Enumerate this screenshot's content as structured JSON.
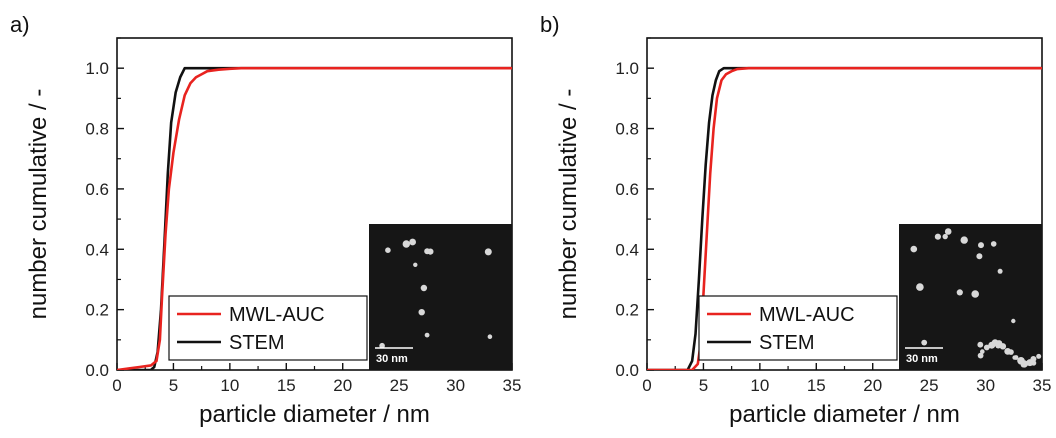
{
  "chart_data": [
    {
      "type": "line",
      "panel_label": "a)",
      "xlabel": "particle diameter / nm",
      "ylabel": "number cumulative / -",
      "xlim": [
        0,
        35
      ],
      "ylim": [
        0,
        1.1
      ],
      "xticks": [
        0,
        5,
        10,
        15,
        20,
        25,
        30,
        35
      ],
      "yticks": [
        0.0,
        0.2,
        0.4,
        0.6,
        0.8,
        1.0
      ],
      "grid": false,
      "legend_placement": "bottom-center",
      "series": [
        {
          "name": "MWL-AUC",
          "color": "#e8231f",
          "x": [
            0,
            2,
            3,
            3.5,
            3.8,
            4.0,
            4.3,
            4.6,
            5.0,
            5.5,
            6.0,
            6.5,
            7.0,
            7.5,
            8.0,
            9.0,
            10.0,
            11.0,
            12.0,
            35
          ],
          "y": [
            0.0,
            0.01,
            0.015,
            0.03,
            0.1,
            0.25,
            0.45,
            0.6,
            0.72,
            0.83,
            0.91,
            0.95,
            0.97,
            0.98,
            0.99,
            0.995,
            0.998,
            1.0,
            1.0,
            1.0
          ]
        },
        {
          "name": "STEM",
          "color": "#111111",
          "x": [
            0,
            3.0,
            3.3,
            3.6,
            3.9,
            4.2,
            4.5,
            4.8,
            5.2,
            5.6,
            6.0,
            35
          ],
          "y": [
            0.0,
            0.0,
            0.01,
            0.06,
            0.2,
            0.42,
            0.65,
            0.82,
            0.92,
            0.97,
            1.0,
            1.0
          ]
        }
      ],
      "inset": {
        "scale_bar_label": "30 nm"
      }
    },
    {
      "type": "line",
      "panel_label": "b)",
      "xlabel": "particle diameter / nm",
      "ylabel": "number cumulative / -",
      "xlim": [
        0,
        35
      ],
      "ylim": [
        0,
        1.1
      ],
      "xticks": [
        0,
        5,
        10,
        15,
        20,
        25,
        30,
        35
      ],
      "yticks": [
        0.0,
        0.2,
        0.4,
        0.6,
        0.8,
        1.0
      ],
      "grid": false,
      "legend_placement": "bottom-center",
      "series": [
        {
          "name": "MWL-AUC",
          "color": "#e8231f",
          "x": [
            0,
            4.0,
            4.5,
            4.8,
            5.0,
            5.3,
            5.6,
            5.9,
            6.2,
            6.6,
            7.0,
            7.5,
            8.0,
            9.0,
            10.0,
            35
          ],
          "y": [
            0.0,
            0.0,
            0.02,
            0.1,
            0.25,
            0.45,
            0.65,
            0.8,
            0.9,
            0.96,
            0.98,
            0.99,
            0.997,
            1.0,
            1.0,
            1.0
          ]
        },
        {
          "name": "STEM",
          "color": "#111111",
          "x": [
            0,
            3.6,
            4.0,
            4.3,
            4.6,
            4.9,
            5.2,
            5.5,
            5.8,
            6.1,
            6.4,
            6.8,
            35
          ],
          "y": [
            0.0,
            0.0,
            0.03,
            0.12,
            0.3,
            0.5,
            0.68,
            0.82,
            0.91,
            0.96,
            0.99,
            1.0,
            1.0
          ]
        }
      ],
      "inset": {
        "scale_bar_label": "30 nm"
      }
    }
  ]
}
